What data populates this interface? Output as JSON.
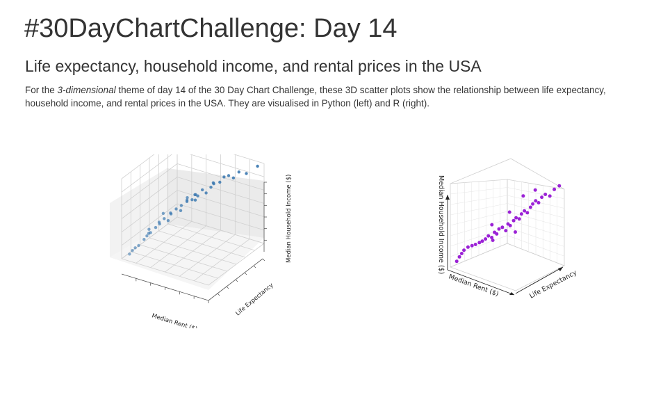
{
  "page": {
    "title": "#30DayChartChallenge: Day 14",
    "subtitle": "Life expectancy, household income, and rental prices in the USA",
    "description": {
      "before": "For the ",
      "emphasis": "3-dimensional",
      "after": " theme of day 14 of the 30 Day Chart Challenge, these 3D scatter plots show the relationship between life expectancy, household income, and rental prices in the USA. They are visualised in Python (left) and R (right)."
    }
  },
  "chart_data": [
    {
      "type": "scatter",
      "name": "python-3d-scatter",
      "xlabel": "Median Rent ($)",
      "ylabel": "Life Expectancy",
      "zlabel": "Median Household Income ($)",
      "color": "#3a78b0",
      "note_scale": "relative position within each axis range (0 = low, 1 = high)",
      "points": [
        {
          "rent": 0.04,
          "life": 0.08,
          "income": 0.03
        },
        {
          "rent": 0.06,
          "life": 0.1,
          "income": 0.07
        },
        {
          "rent": 0.08,
          "life": 0.12,
          "income": 0.1
        },
        {
          "rent": 0.1,
          "life": 0.15,
          "income": 0.12
        },
        {
          "rent": 0.13,
          "life": 0.2,
          "income": 0.18
        },
        {
          "rent": 0.15,
          "life": 0.22,
          "income": 0.22
        },
        {
          "rent": 0.18,
          "life": 0.24,
          "income": 0.26
        },
        {
          "rent": 0.2,
          "life": 0.3,
          "income": 0.3
        },
        {
          "rent": 0.22,
          "life": 0.34,
          "income": 0.33
        },
        {
          "rent": 0.24,
          "life": 0.3,
          "income": 0.38
        },
        {
          "rent": 0.26,
          "life": 0.36,
          "income": 0.4
        },
        {
          "rent": 0.28,
          "life": 0.4,
          "income": 0.36
        },
        {
          "rent": 0.3,
          "life": 0.42,
          "income": 0.44
        },
        {
          "rent": 0.32,
          "life": 0.38,
          "income": 0.48
        },
        {
          "rent": 0.34,
          "life": 0.45,
          "income": 0.5
        },
        {
          "rent": 0.36,
          "life": 0.5,
          "income": 0.46
        },
        {
          "rent": 0.38,
          "life": 0.48,
          "income": 0.54
        },
        {
          "rent": 0.4,
          "life": 0.55,
          "income": 0.56
        },
        {
          "rent": 0.42,
          "life": 0.52,
          "income": 0.6
        },
        {
          "rent": 0.44,
          "life": 0.58,
          "income": 0.58
        },
        {
          "rent": 0.46,
          "life": 0.6,
          "income": 0.64
        },
        {
          "rent": 0.48,
          "life": 0.62,
          "income": 0.62
        },
        {
          "rent": 0.5,
          "life": 0.55,
          "income": 0.68
        },
        {
          "rent": 0.52,
          "life": 0.64,
          "income": 0.7
        },
        {
          "rent": 0.55,
          "life": 0.66,
          "income": 0.66
        },
        {
          "rent": 0.58,
          "life": 0.7,
          "income": 0.72
        },
        {
          "rent": 0.6,
          "life": 0.72,
          "income": 0.76
        },
        {
          "rent": 0.62,
          "life": 0.68,
          "income": 0.8
        },
        {
          "rent": 0.65,
          "life": 0.75,
          "income": 0.78
        },
        {
          "rent": 0.68,
          "life": 0.78,
          "income": 0.84
        },
        {
          "rent": 0.72,
          "life": 0.8,
          "income": 0.86
        },
        {
          "rent": 0.75,
          "life": 0.84,
          "income": 0.82
        },
        {
          "rent": 0.8,
          "life": 0.86,
          "income": 0.9
        },
        {
          "rent": 0.86,
          "life": 0.9,
          "income": 0.88
        },
        {
          "rent": 0.95,
          "life": 0.96,
          "income": 0.97
        },
        {
          "rent": 0.2,
          "life": 0.18,
          "income": 0.34
        },
        {
          "rent": 0.3,
          "life": 0.28,
          "income": 0.52
        },
        {
          "rent": 0.12,
          "life": 0.3,
          "income": 0.2
        },
        {
          "rent": 0.5,
          "life": 0.4,
          "income": 0.72
        },
        {
          "rent": 0.4,
          "life": 0.7,
          "income": 0.5
        }
      ]
    },
    {
      "type": "scatter",
      "name": "r-3d-scatter",
      "xlabel": "Median Rent ($)",
      "ylabel": "Life Expectancy",
      "zlabel": "Median Household Income ($)",
      "color": "#9b22d6",
      "note_scale": "relative position within each axis range (0 = low, 1 = high)",
      "points": [
        {
          "rent": 0.04,
          "life": 0.05,
          "income": 0.05
        },
        {
          "rent": 0.06,
          "life": 0.08,
          "income": 0.1
        },
        {
          "rent": 0.08,
          "life": 0.1,
          "income": 0.14
        },
        {
          "rent": 0.1,
          "life": 0.12,
          "income": 0.18
        },
        {
          "rent": 0.14,
          "life": 0.15,
          "income": 0.22
        },
        {
          "rent": 0.18,
          "life": 0.18,
          "income": 0.24
        },
        {
          "rent": 0.22,
          "life": 0.2,
          "income": 0.26
        },
        {
          "rent": 0.25,
          "life": 0.24,
          "income": 0.28
        },
        {
          "rent": 0.28,
          "life": 0.26,
          "income": 0.3
        },
        {
          "rent": 0.3,
          "life": 0.3,
          "income": 0.32
        },
        {
          "rent": 0.33,
          "life": 0.32,
          "income": 0.36
        },
        {
          "rent": 0.36,
          "life": 0.35,
          "income": 0.34
        },
        {
          "rent": 0.38,
          "life": 0.38,
          "income": 0.4
        },
        {
          "rent": 0.4,
          "life": 0.4,
          "income": 0.38
        },
        {
          "rent": 0.42,
          "life": 0.42,
          "income": 0.44
        },
        {
          "rent": 0.45,
          "life": 0.45,
          "income": 0.46
        },
        {
          "rent": 0.48,
          "life": 0.48,
          "income": 0.42
        },
        {
          "rent": 0.5,
          "life": 0.5,
          "income": 0.5
        },
        {
          "rent": 0.52,
          "life": 0.52,
          "income": 0.48
        },
        {
          "rent": 0.55,
          "life": 0.55,
          "income": 0.54
        },
        {
          "rent": 0.58,
          "life": 0.56,
          "income": 0.58
        },
        {
          "rent": 0.6,
          "life": 0.6,
          "income": 0.56
        },
        {
          "rent": 0.62,
          "life": 0.62,
          "income": 0.62
        },
        {
          "rent": 0.65,
          "life": 0.64,
          "income": 0.66
        },
        {
          "rent": 0.68,
          "life": 0.66,
          "income": 0.64
        },
        {
          "rent": 0.7,
          "life": 0.7,
          "income": 0.7
        },
        {
          "rent": 0.72,
          "life": 0.72,
          "income": 0.74
        },
        {
          "rent": 0.75,
          "life": 0.74,
          "income": 0.78
        },
        {
          "rent": 0.78,
          "life": 0.76,
          "income": 0.76
        },
        {
          "rent": 0.8,
          "life": 0.8,
          "income": 0.82
        },
        {
          "rent": 0.84,
          "life": 0.82,
          "income": 0.86
        },
        {
          "rent": 0.88,
          "life": 0.86,
          "income": 0.84
        },
        {
          "rent": 0.92,
          "life": 0.9,
          "income": 0.92
        },
        {
          "rent": 0.96,
          "life": 0.95,
          "income": 0.96
        },
        {
          "rent": 0.6,
          "life": 0.4,
          "income": 0.7
        },
        {
          "rent": 0.7,
          "life": 0.55,
          "income": 0.88
        },
        {
          "rent": 0.5,
          "life": 0.65,
          "income": 0.36
        },
        {
          "rent": 0.85,
          "life": 0.6,
          "income": 0.98
        },
        {
          "rent": 0.4,
          "life": 0.3,
          "income": 0.52
        },
        {
          "rent": 0.3,
          "life": 0.45,
          "income": 0.26
        }
      ]
    }
  ]
}
